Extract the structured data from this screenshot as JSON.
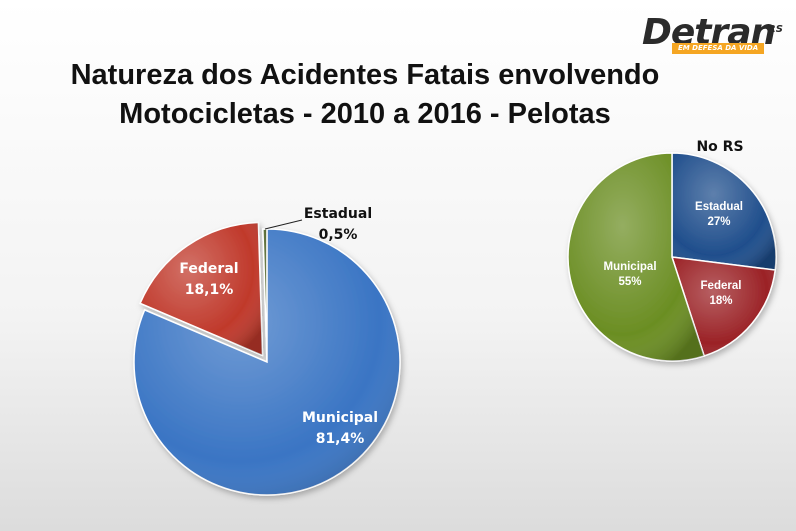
{
  "logo": {
    "word": "Detran",
    "suffix": "RS",
    "tagline": "EM DEFESA DA VIDA",
    "colors": {
      "text": "#2b2b2b",
      "accent": "#f5a623"
    }
  },
  "title_lines": [
    "Natureza dos Acidentes Fatais envolvendo",
    "Motocicletas - 2010 a 2016 - Pelotas"
  ],
  "chart_data": [
    {
      "type": "pie",
      "title": "",
      "slices": [
        {
          "name": "Estadual",
          "value": 0.5,
          "label": "0,5%",
          "color": "#4f6228",
          "exploded": false
        },
        {
          "name": "Municipal",
          "value": 81.4,
          "label": "81,4%",
          "color": "#3a75c4",
          "exploded": false
        },
        {
          "name": "Federal",
          "value": 18.1,
          "label": "18,1%",
          "color": "#c0392b",
          "exploded": true
        }
      ]
    },
    {
      "type": "pie",
      "title": "No RS",
      "slices": [
        {
          "name": "Estadual",
          "value": 27,
          "label": "27%",
          "color": "#1f4e8c",
          "exploded": false
        },
        {
          "name": "Federal",
          "value": 18,
          "label": "18%",
          "color": "#9b2226",
          "exploded": false
        },
        {
          "name": "Municipal",
          "value": 55,
          "label": "55%",
          "color": "#6b8e23",
          "exploded": false
        }
      ]
    }
  ]
}
